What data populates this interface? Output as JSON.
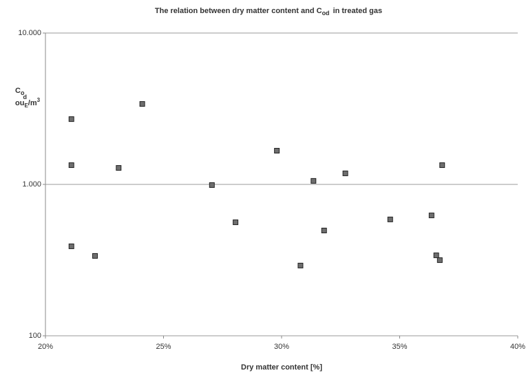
{
  "chart_data": {
    "type": "scatter",
    "title_parts": [
      "The relation between dry matter content and C",
      "od",
      "in treated gas"
    ],
    "ylabel_parts": [
      "C",
      "o",
      "d",
      "ou",
      "E",
      "/m",
      "3"
    ],
    "xlabel": "Dry matter content [%]",
    "x": [
      21.1,
      21.1,
      21.1,
      22.1,
      23.1,
      24.1,
      27.05,
      28.05,
      29.8,
      30.8,
      31.35,
      31.8,
      32.7,
      34.6,
      36.35,
      36.55,
      36.7,
      36.8
    ],
    "values": [
      2700,
      1340,
      390,
      337,
      1285,
      3400,
      990,
      562,
      1670,
      291,
      1055,
      496,
      1183,
      587,
      624,
      340,
      316,
      1340
    ],
    "color": "#6e6e6e",
    "xlim": [
      20,
      40
    ],
    "xticks": [
      {
        "value": 20,
        "label": "20%"
      },
      {
        "value": 25,
        "label": "25%"
      },
      {
        "value": 30,
        "label": "30%"
      },
      {
        "value": 35,
        "label": "35%"
      },
      {
        "value": 40,
        "label": "40%"
      }
    ],
    "ylim": [
      100,
      10000
    ],
    "yticks": [
      100,
      {
        "value": 1000,
        "label": "1.000"
      },
      {
        "value": 10000,
        "label": "10.000"
      }
    ],
    "ylog": true,
    "grid": true
  }
}
